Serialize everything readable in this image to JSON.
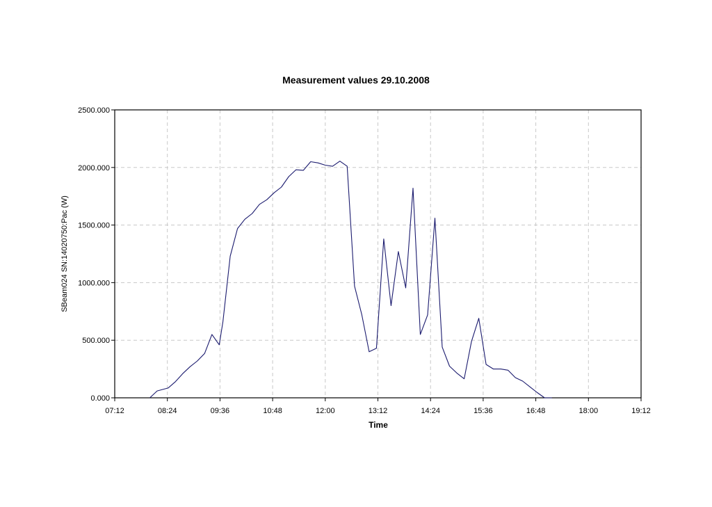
{
  "chart_data": {
    "type": "line",
    "title": "Measurement values 29.10.2008",
    "xlabel": "Time",
    "ylabel": "SBeam024 SN:14020750:Pac (W)",
    "xlim": [
      "07:12",
      "19:12"
    ],
    "ylim": [
      0,
      2500
    ],
    "x_ticks": [
      "07:12",
      "08:24",
      "09:36",
      "10:48",
      "12:00",
      "13:12",
      "14:24",
      "15:36",
      "16:48",
      "18:00",
      "19:12"
    ],
    "y_ticks": [
      "0.000",
      "500.000",
      "1000.000",
      "1500.000",
      "2000.000",
      "2500.000"
    ],
    "grid": true,
    "line_color": "#1a1a6e",
    "series": [
      {
        "x": [
          "08:00",
          "08:10",
          "08:25",
          "08:35",
          "08:45",
          "08:55",
          "09:05",
          "09:15",
          "09:25",
          "09:35",
          "09:40",
          "09:50",
          "10:00",
          "10:10",
          "10:20",
          "10:30",
          "10:40",
          "10:50",
          "11:00",
          "11:10",
          "11:20",
          "11:30",
          "11:40",
          "11:50",
          "12:00",
          "12:10",
          "12:20",
          "12:30",
          "12:40",
          "12:50",
          "13:00",
          "13:10",
          "13:20",
          "13:30",
          "13:40",
          "13:50",
          "14:00",
          "14:10",
          "14:20",
          "14:30",
          "14:40",
          "14:50",
          "15:00",
          "15:10",
          "15:20",
          "15:30",
          "15:40",
          "15:50",
          "16:00",
          "16:10",
          "16:20",
          "16:30",
          "16:40",
          "16:50",
          "17:00",
          "17:10"
        ],
        "y": [
          0,
          60,
          85,
          140,
          210,
          270,
          320,
          385,
          550,
          460,
          660,
          1230,
          1470,
          1550,
          1600,
          1680,
          1720,
          1780,
          1830,
          1920,
          1980,
          1975,
          2050,
          2040,
          2020,
          2010,
          2055,
          2010,
          970,
          720,
          400,
          430,
          1380,
          800,
          1270,
          955,
          1820,
          550,
          720,
          1560,
          440,
          275,
          215,
          165,
          490,
          690,
          290,
          250,
          250,
          240,
          175,
          145,
          95,
          45,
          0,
          0
        ]
      }
    ]
  }
}
